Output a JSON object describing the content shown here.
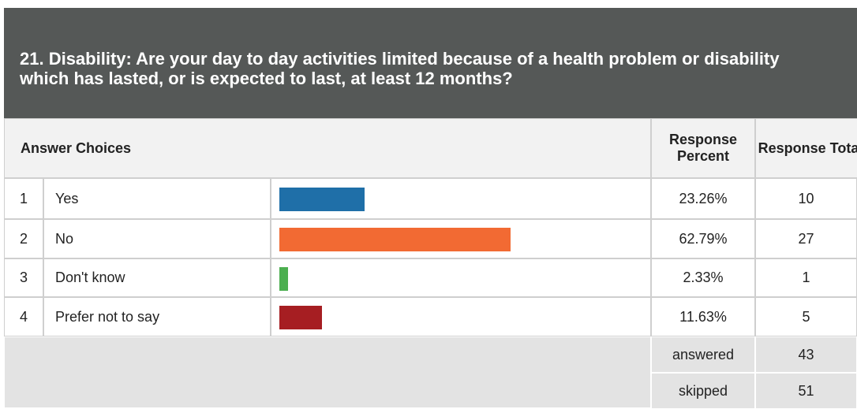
{
  "title": "21. Disability: Are your day to day activities limited because of a health problem or disability which has lasted, or is expected to last, at least 12 months?",
  "table": {
    "headers": [
      "Answer Choices",
      "Response Percent",
      "Response Total"
    ],
    "percent_max": 100,
    "rows": [
      {
        "number": 1,
        "label": "Yes",
        "percent": 23.26,
        "percent_label": "23.26%",
        "total": 10,
        "color": "#1f6fa8"
      },
      {
        "number": 2,
        "label": "No",
        "percent": 62.79,
        "percent_label": "62.79%",
        "total": 27,
        "color": "#f26a33"
      },
      {
        "number": 3,
        "label": "Don't know",
        "percent": 2.33,
        "percent_label": "2.33%",
        "total": 1,
        "color": "#4caf50"
      },
      {
        "number": 4,
        "label": "Prefer not to say",
        "percent": 11.63,
        "percent_label": "11.63%",
        "total": 5,
        "color": "#a61e22"
      }
    ],
    "answered": {
      "label": "answered",
      "value": 43
    },
    "skipped": {
      "label": "skipped",
      "value": 51
    }
  }
}
